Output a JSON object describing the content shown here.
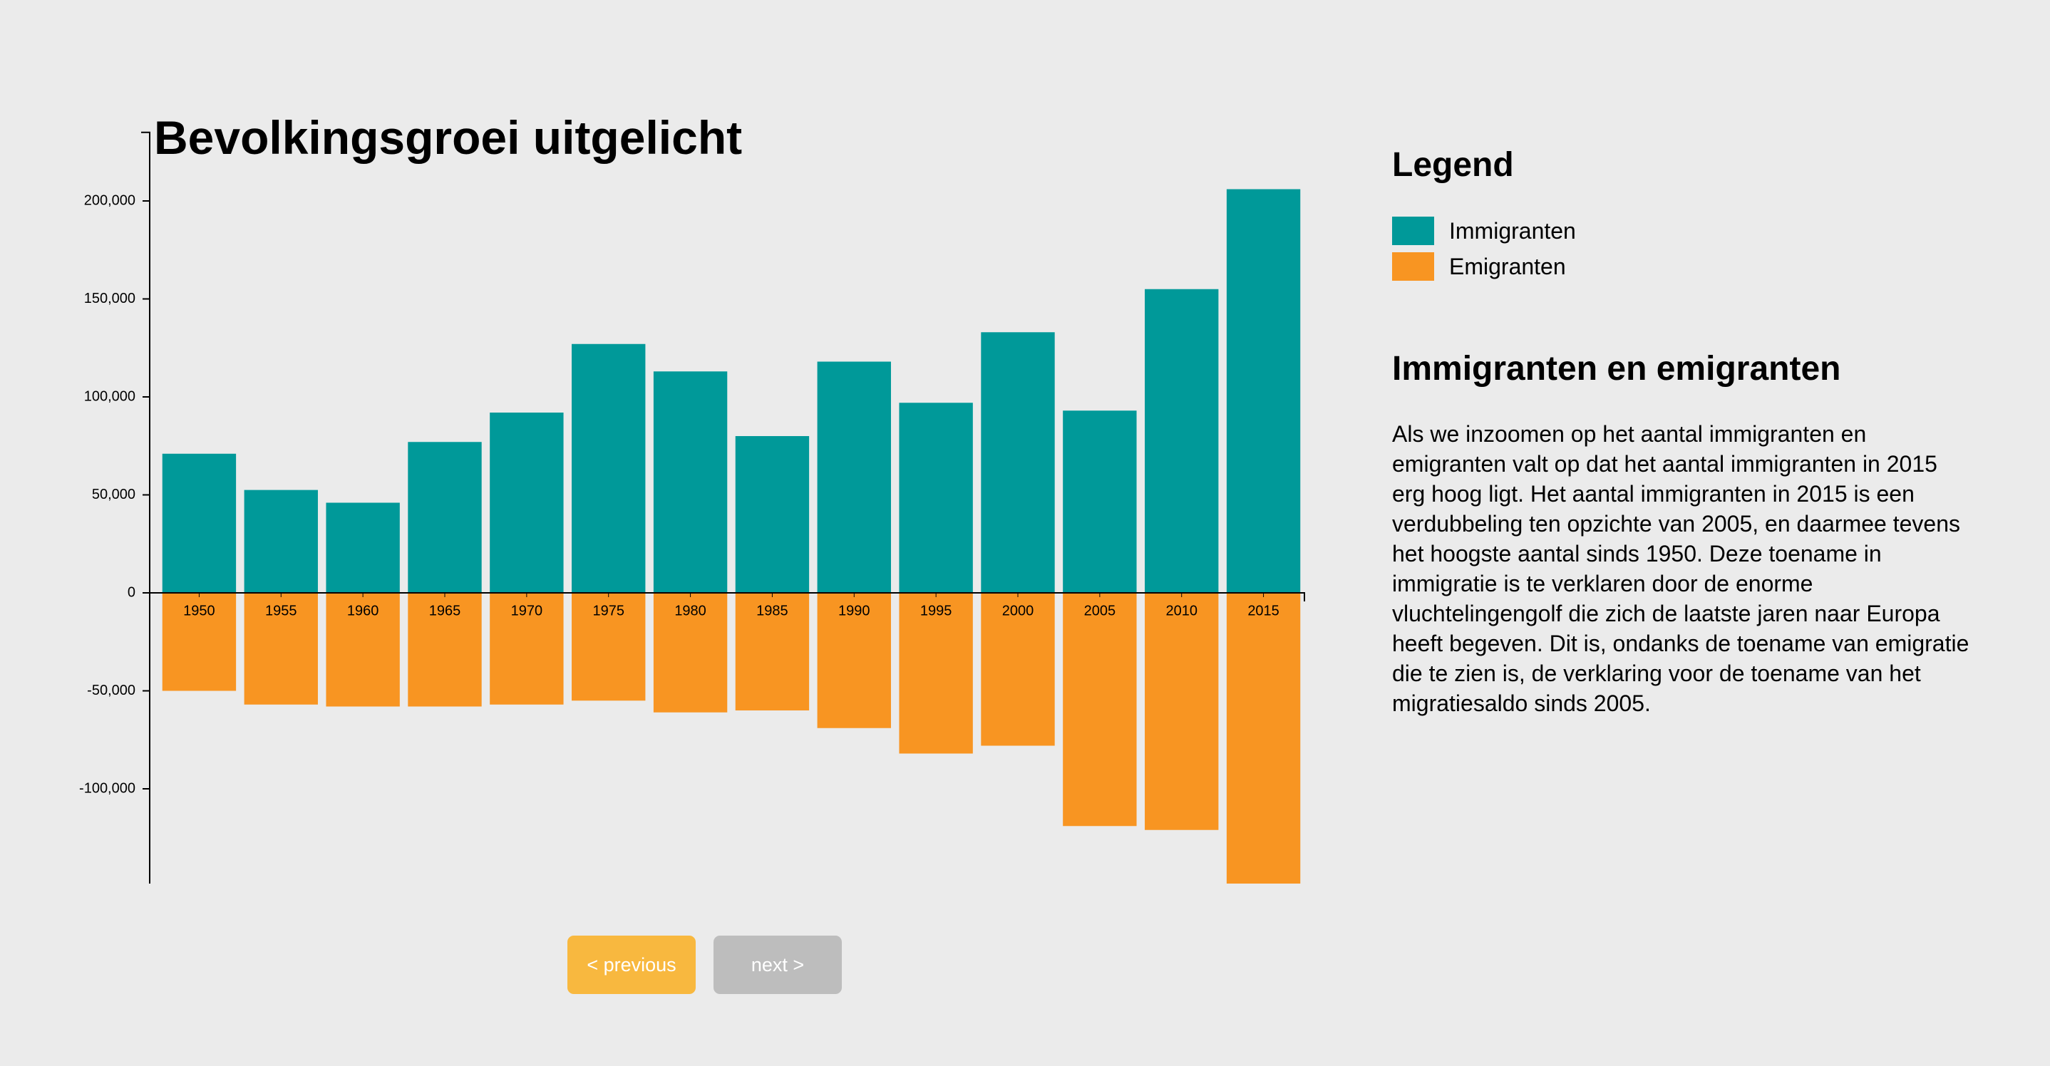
{
  "page": {
    "title": "Bevolkingsgroei uitgelicht"
  },
  "legend": {
    "title": "Legend",
    "items": [
      {
        "label": "Immigranten",
        "color": "#009999"
      },
      {
        "label": "Emigranten",
        "color": "#f89522"
      }
    ]
  },
  "section": {
    "title": "Immigranten en emigranten",
    "body": "Als we inzoomen op het aantal immigranten en emigranten valt op dat het aantal immigranten in 2015 erg hoog ligt. Het aantal immigranten in 2015 is een verdubbeling ten opzichte van 2005, en daarmee tevens het hoogste aantal sinds 1950. Deze toename in immigratie is te verklaren door de enorme vluchtelingengolf die zich de laatste jaren naar Europa heeft begeven. Dit is, ondanks de toename van emigratie die te zien is, de verklaring voor de toename van het migratiesaldo sinds 2005."
  },
  "nav": {
    "previous_label": "< previous",
    "next_label": "next >"
  },
  "chart_data": {
    "type": "bar",
    "categories": [
      "1950",
      "1955",
      "1960",
      "1965",
      "1970",
      "1975",
      "1980",
      "1985",
      "1990",
      "1995",
      "2000",
      "2005",
      "2010",
      "2015"
    ],
    "series": [
      {
        "name": "Immigranten",
        "color": "#009999",
        "values": [
          71000,
          52500,
          46000,
          77000,
          92000,
          127000,
          113000,
          80000,
          118000,
          97000,
          133000,
          93000,
          155000,
          206000
        ]
      },
      {
        "name": "Emigranten",
        "color": "#f89522",
        "values": [
          -50000,
          -57000,
          -58000,
          -58000,
          -57000,
          -55000,
          -61000,
          -60000,
          -69000,
          -82000,
          -78000,
          -119000,
          -121000,
          -150000
        ]
      }
    ],
    "yticks": [
      200000,
      150000,
      100000,
      50000,
      0,
      -50000,
      -100000
    ],
    "ytick_labels": [
      "200,000",
      "150,000",
      "100,000",
      "50,000",
      "0",
      "-50,000",
      "-100,000"
    ],
    "ylim": [
      -150000,
      235000
    ],
    "stacked": false,
    "grid": false,
    "xlabel": "",
    "ylabel": "",
    "title": "",
    "legend_position": "right"
  }
}
